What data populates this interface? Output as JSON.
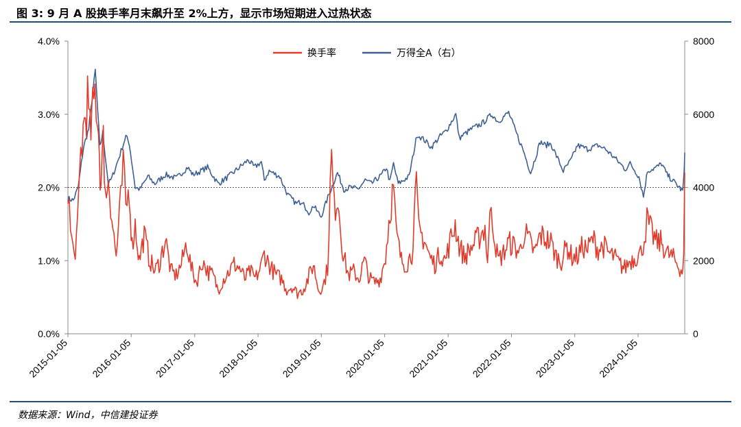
{
  "header": {
    "title": "图 3: 9 月 A 股换手率月末飙升至 2%上方，显示市场短期进入过热状态"
  },
  "footer": {
    "source": "数据来源：Wind，中信建投证券"
  },
  "colors": {
    "turnover": "#e03a2b",
    "index": "#3d5f91",
    "rule": "#1f4e79",
    "refline": "#555555"
  },
  "chart_data": {
    "type": "line",
    "title": "",
    "legend_position": "top-center",
    "grid": false,
    "x_range": [
      "2015-01-05",
      "2024-09-30"
    ],
    "x_tick_labels": [
      "2015-01-05",
      "2016-01-05",
      "2017-01-05",
      "2018-01-05",
      "2019-01-05",
      "2020-01-05",
      "2021-01-05",
      "2022-01-05",
      "2023-01-05",
      "2024-01-05"
    ],
    "left_axis": {
      "ylim": [
        0,
        4.0
      ],
      "tick_labels": [
        "0.0%",
        "1.0%",
        "2.0%",
        "3.0%",
        "4.0%"
      ],
      "unit": "%"
    },
    "right_axis": {
      "ylim": [
        0,
        8000
      ],
      "tick_labels": [
        "0",
        "2000",
        "4000",
        "6000",
        "8000"
      ]
    },
    "reference_line": {
      "axis": "left",
      "value": 2.0
    },
    "series": [
      {
        "name": "换手率",
        "axis": "left",
        "points": [
          [
            "2015-01-05",
            2.05
          ],
          [
            "2015-01-20",
            1.4
          ],
          [
            "2015-02-10",
            1.05
          ],
          [
            "2015-03-01",
            1.4
          ],
          [
            "2015-03-20",
            2.5
          ],
          [
            "2015-04-10",
            2.9
          ],
          [
            "2015-04-28",
            3.2
          ],
          [
            "2015-05-12",
            2.7
          ],
          [
            "2015-05-28",
            3.0
          ],
          [
            "2015-06-10",
            3.3
          ],
          [
            "2015-06-25",
            3.05
          ],
          [
            "2015-07-05",
            2.5
          ],
          [
            "2015-07-15",
            2.0
          ],
          [
            "2015-07-28",
            2.6
          ],
          [
            "2015-08-15",
            1.8
          ],
          [
            "2015-08-26",
            2.2
          ],
          [
            "2015-09-15",
            1.6
          ],
          [
            "2015-10-10",
            1.05
          ],
          [
            "2015-11-05",
            1.8
          ],
          [
            "2015-11-20",
            2.3
          ],
          [
            "2015-12-05",
            1.7
          ],
          [
            "2015-12-25",
            2.0
          ],
          [
            "2016-01-10",
            1.2
          ],
          [
            "2016-01-28",
            1.5
          ],
          [
            "2016-02-20",
            1.0
          ],
          [
            "2016-03-20",
            1.35
          ],
          [
            "2016-04-15",
            1.05
          ],
          [
            "2016-05-20",
            0.85
          ],
          [
            "2016-06-20",
            1.0
          ],
          [
            "2016-07-20",
            1.3
          ],
          [
            "2016-08-20",
            0.85
          ],
          [
            "2016-09-20",
            0.8
          ],
          [
            "2016-10-20",
            0.95
          ],
          [
            "2016-11-20",
            1.25
          ],
          [
            "2016-12-15",
            0.9
          ],
          [
            "2017-01-15",
            0.7
          ],
          [
            "2017-02-20",
            1.0
          ],
          [
            "2017-03-20",
            0.85
          ],
          [
            "2017-04-20",
            0.8
          ],
          [
            "2017-05-20",
            0.6
          ],
          [
            "2017-06-20",
            0.75
          ],
          [
            "2017-07-20",
            0.85
          ],
          [
            "2017-08-20",
            0.95
          ],
          [
            "2017-09-20",
            0.9
          ],
          [
            "2017-10-20",
            0.75
          ],
          [
            "2017-11-20",
            0.85
          ],
          [
            "2017-12-20",
            0.75
          ],
          [
            "2018-01-20",
            0.9
          ],
          [
            "2018-02-10",
            1.1
          ],
          [
            "2018-03-20",
            0.9
          ],
          [
            "2018-04-20",
            0.8
          ],
          [
            "2018-05-20",
            0.75
          ],
          [
            "2018-06-20",
            0.6
          ],
          [
            "2018-07-20",
            0.65
          ],
          [
            "2018-08-20",
            0.55
          ],
          [
            "2018-09-20",
            0.6
          ],
          [
            "2018-10-20",
            0.75
          ],
          [
            "2018-11-20",
            0.95
          ],
          [
            "2018-12-20",
            0.6
          ],
          [
            "2019-01-15",
            0.65
          ],
          [
            "2019-02-10",
            0.9
          ],
          [
            "2019-02-25",
            2.0
          ],
          [
            "2019-03-05",
            2.4
          ],
          [
            "2019-03-20",
            1.7
          ],
          [
            "2019-04-10",
            1.9
          ],
          [
            "2019-05-10",
            1.1
          ],
          [
            "2019-06-10",
            0.8
          ],
          [
            "2019-07-10",
            0.85
          ],
          [
            "2019-08-10",
            0.75
          ],
          [
            "2019-09-10",
            1.0
          ],
          [
            "2019-10-10",
            0.75
          ],
          [
            "2019-11-10",
            0.7
          ],
          [
            "2019-12-10",
            0.75
          ],
          [
            "2020-01-10",
            1.05
          ],
          [
            "2020-02-05",
            1.7
          ],
          [
            "2020-02-25",
            2.0
          ],
          [
            "2020-03-10",
            1.4
          ],
          [
            "2020-04-10",
            1.0
          ],
          [
            "2020-05-10",
            0.95
          ],
          [
            "2020-06-10",
            1.1
          ],
          [
            "2020-07-06",
            2.0
          ],
          [
            "2020-07-20",
            1.4
          ],
          [
            "2020-08-20",
            1.3
          ],
          [
            "2020-09-20",
            1.05
          ],
          [
            "2020-10-20",
            0.95
          ],
          [
            "2020-11-20",
            1.1
          ],
          [
            "2020-12-20",
            1.0
          ],
          [
            "2021-01-15",
            1.25
          ],
          [
            "2021-02-15",
            1.5
          ],
          [
            "2021-03-10",
            1.2
          ],
          [
            "2021-04-10",
            1.05
          ],
          [
            "2021-05-10",
            1.15
          ],
          [
            "2021-06-10",
            1.25
          ],
          [
            "2021-07-10",
            1.35
          ],
          [
            "2021-08-05",
            1.45
          ],
          [
            "2021-08-20",
            1.0
          ],
          [
            "2021-09-10",
            1.8
          ],
          [
            "2021-09-25",
            1.4
          ],
          [
            "2021-10-20",
            1.0
          ],
          [
            "2021-11-20",
            1.1
          ],
          [
            "2021-12-20",
            1.25
          ],
          [
            "2022-01-20",
            1.2
          ],
          [
            "2022-02-20",
            1.1
          ],
          [
            "2022-03-20",
            1.4
          ],
          [
            "2022-04-20",
            1.25
          ],
          [
            "2022-05-20",
            1.1
          ],
          [
            "2022-06-20",
            1.35
          ],
          [
            "2022-07-20",
            1.3
          ],
          [
            "2022-08-20",
            1.25
          ],
          [
            "2022-09-20",
            1.05
          ],
          [
            "2022-10-20",
            1.0
          ],
          [
            "2022-11-20",
            1.2
          ],
          [
            "2022-12-20",
            1.05
          ],
          [
            "2023-01-20",
            1.05
          ],
          [
            "2023-02-20",
            1.2
          ],
          [
            "2023-03-20",
            1.15
          ],
          [
            "2023-04-20",
            1.3
          ],
          [
            "2023-05-20",
            1.15
          ],
          [
            "2023-06-20",
            1.2
          ],
          [
            "2023-07-20",
            1.1
          ],
          [
            "2023-08-20",
            1.05
          ],
          [
            "2023-09-20",
            0.95
          ],
          [
            "2023-10-20",
            0.9
          ],
          [
            "2023-11-20",
            1.0
          ],
          [
            "2023-12-20",
            1.05
          ],
          [
            "2024-01-20",
            1.1
          ],
          [
            "2024-02-10",
            1.3
          ],
          [
            "2024-02-25",
            1.55
          ],
          [
            "2024-03-20",
            1.4
          ],
          [
            "2024-04-20",
            1.25
          ],
          [
            "2024-05-20",
            1.25
          ],
          [
            "2024-06-20",
            1.1
          ],
          [
            "2024-07-20",
            1.05
          ],
          [
            "2024-08-20",
            0.95
          ],
          [
            "2024-09-15",
            0.85
          ],
          [
            "2024-09-24",
            1.0
          ],
          [
            "2024-09-30",
            2.2
          ]
        ]
      },
      {
        "name": "万得全A（右）",
        "axis": "right",
        "points": [
          [
            "2015-01-05",
            3700
          ],
          [
            "2015-02-05",
            3650
          ],
          [
            "2015-03-05",
            4000
          ],
          [
            "2015-04-05",
            5100
          ],
          [
            "2015-05-05",
            5600
          ],
          [
            "2015-06-12",
            7200
          ],
          [
            "2015-07-08",
            5100
          ],
          [
            "2015-07-25",
            5500
          ],
          [
            "2015-08-26",
            4100
          ],
          [
            "2015-09-15",
            4250
          ],
          [
            "2015-10-25",
            4800
          ],
          [
            "2015-12-05",
            5400
          ],
          [
            "2015-12-25",
            5200
          ],
          [
            "2016-01-28",
            4000
          ],
          [
            "2016-02-25",
            3950
          ],
          [
            "2016-04-10",
            4300
          ],
          [
            "2016-05-20",
            4100
          ],
          [
            "2016-07-20",
            4350
          ],
          [
            "2016-09-20",
            4250
          ],
          [
            "2016-11-25",
            4550
          ],
          [
            "2016-12-25",
            4350
          ],
          [
            "2017-01-20",
            4400
          ],
          [
            "2017-03-20",
            4550
          ],
          [
            "2017-05-20",
            4100
          ],
          [
            "2017-07-20",
            4300
          ],
          [
            "2017-09-20",
            4550
          ],
          [
            "2017-11-10",
            4750
          ],
          [
            "2017-12-15",
            4550
          ],
          [
            "2018-01-24",
            4700
          ],
          [
            "2018-02-10",
            4200
          ],
          [
            "2018-03-10",
            4450
          ],
          [
            "2018-05-10",
            4300
          ],
          [
            "2018-06-25",
            3800
          ],
          [
            "2018-08-15",
            3550
          ],
          [
            "2018-09-25",
            3650
          ],
          [
            "2018-10-18",
            3250
          ],
          [
            "2018-11-20",
            3500
          ],
          [
            "2019-01-03",
            3200
          ],
          [
            "2019-02-25",
            3900
          ],
          [
            "2019-04-08",
            4400
          ],
          [
            "2019-05-15",
            3950
          ],
          [
            "2019-06-20",
            4000
          ],
          [
            "2019-08-05",
            3950
          ],
          [
            "2019-09-15",
            4200
          ],
          [
            "2019-10-20",
            4100
          ],
          [
            "2019-12-20",
            4350
          ],
          [
            "2020-01-15",
            4550
          ],
          [
            "2020-02-04",
            4150
          ],
          [
            "2020-02-25",
            4650
          ],
          [
            "2020-03-23",
            4100
          ],
          [
            "2020-05-25",
            4300
          ],
          [
            "2020-07-10",
            5450
          ],
          [
            "2020-08-20",
            5300
          ],
          [
            "2020-09-30",
            5100
          ],
          [
            "2020-11-20",
            5400
          ],
          [
            "2020-12-25",
            5550
          ],
          [
            "2021-02-18",
            6000
          ],
          [
            "2021-03-10",
            5350
          ],
          [
            "2021-05-20",
            5600
          ],
          [
            "2021-07-20",
            5750
          ],
          [
            "2021-09-15",
            6000
          ],
          [
            "2021-10-20",
            5800
          ],
          [
            "2021-12-20",
            6050
          ],
          [
            "2022-01-28",
            5550
          ],
          [
            "2022-03-15",
            5000
          ],
          [
            "2022-04-26",
            4400
          ],
          [
            "2022-06-20",
            5250
          ],
          [
            "2022-07-20",
            5150
          ],
          [
            "2022-08-20",
            5200
          ],
          [
            "2022-10-31",
            4450
          ],
          [
            "2022-12-15",
            4750
          ],
          [
            "2023-01-20",
            5150
          ],
          [
            "2023-03-20",
            5050
          ],
          [
            "2023-05-20",
            5150
          ],
          [
            "2023-06-30",
            5050
          ],
          [
            "2023-08-25",
            4800
          ],
          [
            "2023-10-23",
            4500
          ],
          [
            "2023-11-20",
            4650
          ],
          [
            "2024-01-10",
            4300
          ],
          [
            "2024-02-05",
            3750
          ],
          [
            "2024-02-28",
            4450
          ],
          [
            "2024-04-20",
            4550
          ],
          [
            "2024-05-20",
            4650
          ],
          [
            "2024-06-20",
            4350
          ],
          [
            "2024-07-20",
            4200
          ],
          [
            "2024-08-20",
            4050
          ],
          [
            "2024-09-18",
            3900
          ],
          [
            "2024-09-26",
            4350
          ],
          [
            "2024-09-30",
            4950
          ]
        ]
      }
    ]
  }
}
